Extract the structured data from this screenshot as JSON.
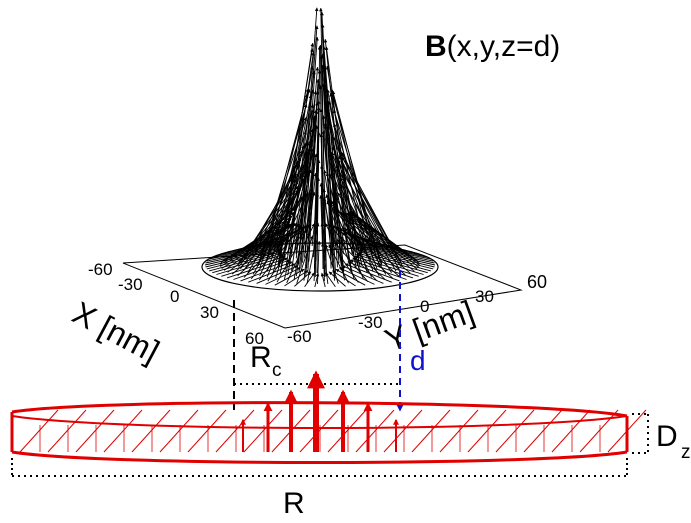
{
  "title": {
    "bold": "B",
    "rest": "(x,y,z=d)"
  },
  "x_axis": {
    "label": "X [nm]",
    "ticks": [
      "-60",
      "-30",
      "0",
      "30",
      "60"
    ]
  },
  "y_axis": {
    "label": "Y [nm]",
    "ticks": [
      "-60",
      "-30",
      "0",
      "30",
      "60"
    ]
  },
  "labels": {
    "rc": "R",
    "rc_sub": "c",
    "d": "d",
    "dz": "D",
    "dz_sub": "z",
    "r": "R"
  },
  "colors": {
    "field_arrows": "#000000",
    "disk": "#e00000",
    "d_marker": "#1010d0",
    "dims": "#000000"
  }
}
